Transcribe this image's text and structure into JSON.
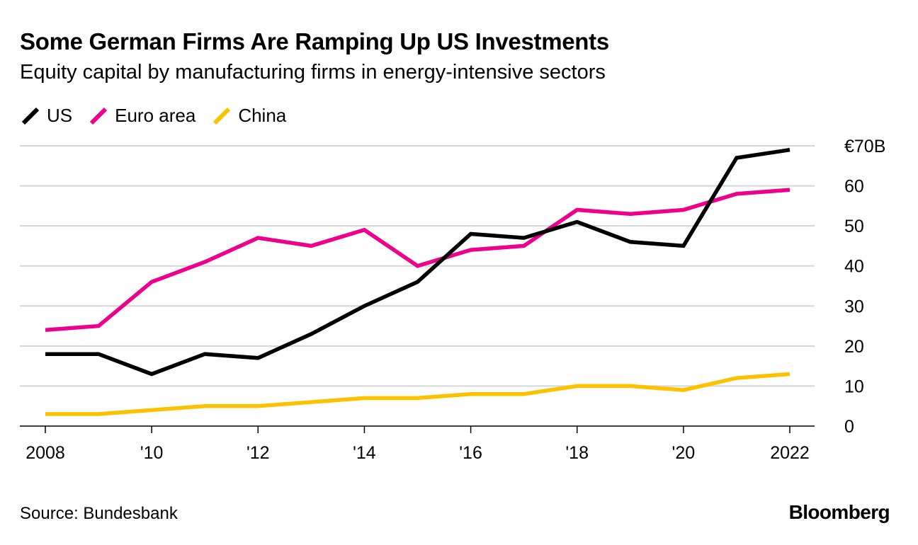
{
  "header": {
    "title": "Some German Firms Are Ramping Up US Investments",
    "subtitle": "Equity capital by manufacturing firms in energy-intensive sectors"
  },
  "legend": [
    {
      "label": "US",
      "color": "#000000"
    },
    {
      "label": "Euro area",
      "color": "#ec008c"
    },
    {
      "label": "China",
      "color": "#fcc200"
    }
  ],
  "footer": {
    "source": "Source: Bundesbank",
    "brand": "Bloomberg"
  },
  "chart_data": {
    "type": "line",
    "title": "Some German Firms Are Ramping Up US Investments",
    "subtitle": "Equity capital by manufacturing firms in energy-intensive sectors",
    "x": [
      2008,
      2009,
      2010,
      2011,
      2012,
      2013,
      2014,
      2015,
      2016,
      2017,
      2018,
      2019,
      2020,
      2021,
      2022
    ],
    "x_tick_values": [
      2008,
      2010,
      2012,
      2014,
      2016,
      2018,
      2020,
      2022
    ],
    "x_tick_labels": [
      "2008",
      "'10",
      "'12",
      "'14",
      "'16",
      "'18",
      "'20",
      "2022"
    ],
    "y_tick_values": [
      0,
      10,
      20,
      30,
      40,
      50,
      60,
      70
    ],
    "y_tick_labels": [
      "0",
      "10",
      "20",
      "30",
      "40",
      "50",
      "60",
      "€70B"
    ],
    "ylim": [
      0,
      70
    ],
    "grid": true,
    "legend_position": "top-left",
    "y_axis_side": "right",
    "series": [
      {
        "name": "US",
        "color": "#000000",
        "values": [
          18,
          18,
          13,
          18,
          17,
          23,
          30,
          36,
          48,
          47,
          51,
          46,
          45,
          67,
          69
        ]
      },
      {
        "name": "Euro area",
        "color": "#ec008c",
        "values": [
          24,
          25,
          36,
          41,
          47,
          45,
          49,
          40,
          44,
          45,
          54,
          53,
          54,
          58,
          59
        ]
      },
      {
        "name": "China",
        "color": "#fcc200",
        "values": [
          3,
          3,
          4,
          5,
          5,
          6,
          7,
          7,
          8,
          8,
          10,
          10,
          9,
          12,
          13
        ]
      }
    ]
  }
}
